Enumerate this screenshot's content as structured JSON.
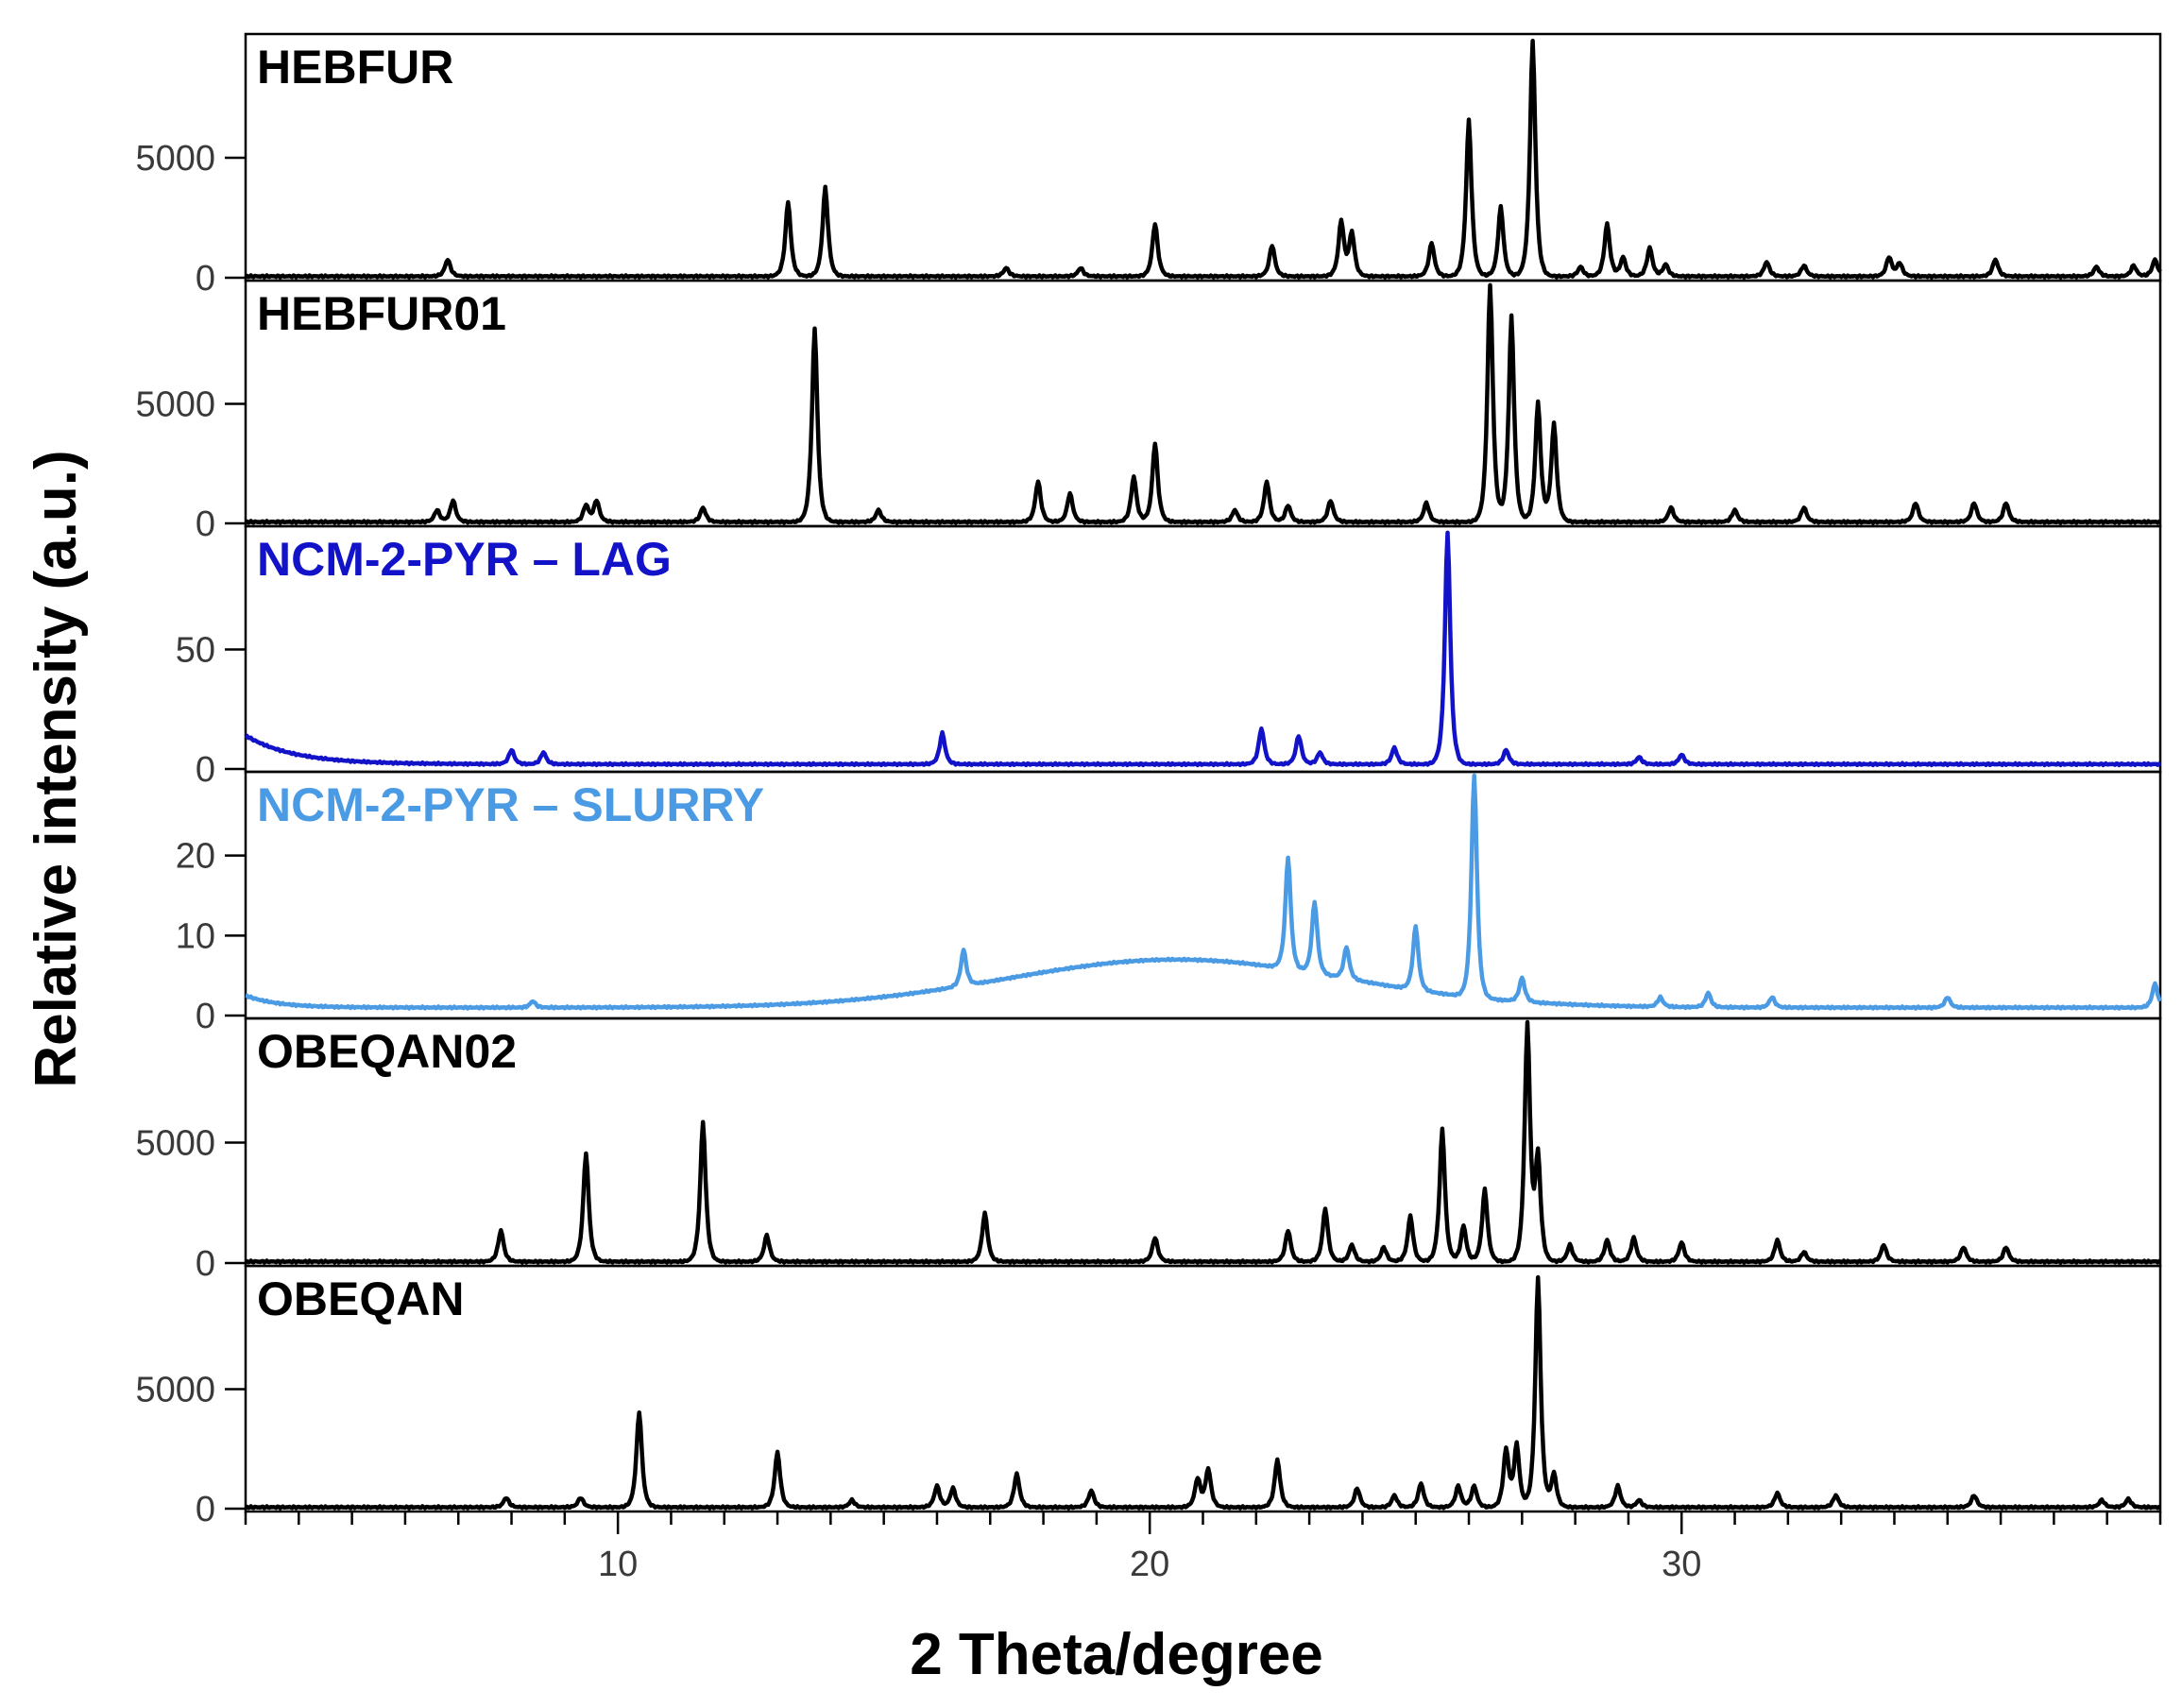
{
  "chart_data": {
    "type": "line",
    "xlabel": "2 Theta/degree",
    "ylabel": "Relative intensity (a.u.)",
    "xlim": [
      3,
      39
    ],
    "x_ticks": [
      10,
      20,
      30
    ],
    "x_minor_step": 1,
    "layout": "vertically stacked panels sharing the x axis",
    "series": [
      {
        "name": "HEBFUR",
        "color": "#000000",
        "ylim": [
          0,
          10000
        ],
        "y_ticks": [
          0,
          5000
        ],
        "baseline": 60,
        "peaks": [
          [
            6.8,
            700
          ],
          [
            13.2,
            3100
          ],
          [
            13.9,
            3700
          ],
          [
            17.3,
            350
          ],
          [
            18.7,
            350
          ],
          [
            20.1,
            2200
          ],
          [
            22.3,
            1300
          ],
          [
            23.6,
            2300
          ],
          [
            23.8,
            1800
          ],
          [
            25.3,
            1400
          ],
          [
            26.0,
            6500
          ],
          [
            26.6,
            2900
          ],
          [
            27.2,
            9800
          ],
          [
            28.1,
            400
          ],
          [
            28.6,
            2200
          ],
          [
            28.9,
            800
          ],
          [
            29.4,
            1200
          ],
          [
            29.7,
            500
          ],
          [
            31.6,
            600
          ],
          [
            32.3,
            450
          ],
          [
            33.9,
            800
          ],
          [
            34.1,
            550
          ],
          [
            35.9,
            700
          ],
          [
            37.8,
            400
          ],
          [
            38.5,
            450
          ],
          [
            38.9,
            700
          ]
        ]
      },
      {
        "name": "HEBFUR01",
        "color": "#000000",
        "ylim": [
          0,
          10000
        ],
        "y_ticks": [
          0,
          5000
        ],
        "baseline": 60,
        "peaks": [
          [
            6.6,
            500
          ],
          [
            6.9,
            900
          ],
          [
            9.4,
            700
          ],
          [
            9.6,
            900
          ],
          [
            11.6,
            600
          ],
          [
            13.7,
            8100
          ],
          [
            14.9,
            500
          ],
          [
            17.9,
            1700
          ],
          [
            18.5,
            1200
          ],
          [
            19.7,
            1900
          ],
          [
            20.1,
            3300
          ],
          [
            21.6,
            500
          ],
          [
            22.2,
            1700
          ],
          [
            22.6,
            700
          ],
          [
            23.4,
            900
          ],
          [
            25.2,
            800
          ],
          [
            26.4,
            9900
          ],
          [
            26.8,
            8600
          ],
          [
            27.3,
            5000
          ],
          [
            27.6,
            4100
          ],
          [
            29.8,
            600
          ],
          [
            31.0,
            500
          ],
          [
            32.3,
            600
          ],
          [
            34.4,
            800
          ],
          [
            35.5,
            800
          ],
          [
            36.1,
            800
          ]
        ]
      },
      {
        "name": "NCM-2-PYR – LAG",
        "color": "#1212c8",
        "ylim": [
          0,
          100
        ],
        "y_ticks": [
          0,
          50
        ],
        "baseline": 2,
        "low_angle_rise": {
          "start": 3,
          "height": 12,
          "decay": 0.9
        },
        "peaks": [
          [
            8.0,
            6
          ],
          [
            8.6,
            5
          ],
          [
            16.1,
            13
          ],
          [
            22.1,
            15
          ],
          [
            22.8,
            12
          ],
          [
            23.2,
            5
          ],
          [
            24.6,
            7
          ],
          [
            25.6,
            97
          ],
          [
            26.7,
            6
          ],
          [
            29.2,
            3
          ],
          [
            30.0,
            4
          ]
        ]
      },
      {
        "name": "NCM-2-PYR – SLURRY",
        "color": "#4a9be4",
        "ylim": [
          0,
          30
        ],
        "y_ticks": [
          0,
          10,
          20
        ],
        "baseline": 1,
        "low_angle_rise": {
          "start": 3,
          "height": 1.5,
          "decay": 0.6
        },
        "broad_hump": {
          "center": 20.5,
          "height": 6,
          "width": 4.5
        },
        "peaks": [
          [
            8.4,
            0.8
          ],
          [
            16.5,
            4.5
          ],
          [
            22.6,
            14
          ],
          [
            23.1,
            9
          ],
          [
            23.7,
            4
          ],
          [
            25.0,
            8
          ],
          [
            26.1,
            28
          ],
          [
            27.0,
            3
          ],
          [
            29.6,
            1.2
          ],
          [
            30.5,
            1.8
          ],
          [
            31.7,
            1.3
          ],
          [
            35.0,
            1.3
          ],
          [
            38.9,
            3
          ]
        ]
      },
      {
        "name": "OBEQAN02",
        "color": "#000000",
        "ylim": [
          0,
          10000
        ],
        "y_ticks": [
          0,
          5000
        ],
        "baseline": 60,
        "peaks": [
          [
            7.8,
            1300
          ],
          [
            9.4,
            4500
          ],
          [
            11.6,
            5800
          ],
          [
            12.8,
            1100
          ],
          [
            16.9,
            2000
          ],
          [
            20.1,
            1000
          ],
          [
            22.6,
            1300
          ],
          [
            23.3,
            2200
          ],
          [
            23.8,
            700
          ],
          [
            24.4,
            600
          ],
          [
            24.9,
            1900
          ],
          [
            25.5,
            5500
          ],
          [
            25.9,
            1500
          ],
          [
            26.3,
            3000
          ],
          [
            27.1,
            9800
          ],
          [
            27.3,
            4300
          ],
          [
            27.9,
            700
          ],
          [
            28.6,
            900
          ],
          [
            29.1,
            1000
          ],
          [
            30.0,
            800
          ],
          [
            31.8,
            900
          ],
          [
            32.3,
            400
          ],
          [
            33.8,
            700
          ],
          [
            35.3,
            600
          ],
          [
            36.1,
            600
          ]
        ]
      },
      {
        "name": "OBEQAN",
        "color": "#000000",
        "ylim": [
          0,
          10000
        ],
        "y_ticks": [
          0,
          5000
        ],
        "baseline": 60,
        "peaks": [
          [
            7.9,
            400
          ],
          [
            9.3,
            400
          ],
          [
            10.4,
            4000
          ],
          [
            13.0,
            2300
          ],
          [
            14.4,
            300
          ],
          [
            16.0,
            900
          ],
          [
            16.3,
            800
          ],
          [
            17.5,
            1400
          ],
          [
            18.9,
            700
          ],
          [
            20.9,
            1200
          ],
          [
            21.1,
            1600
          ],
          [
            22.4,
            2000
          ],
          [
            23.9,
            800
          ],
          [
            24.6,
            500
          ],
          [
            25.1,
            1000
          ],
          [
            25.8,
            900
          ],
          [
            26.1,
            900
          ],
          [
            26.7,
            2400
          ],
          [
            26.9,
            2600
          ],
          [
            27.3,
            9600
          ],
          [
            27.6,
            1400
          ],
          [
            28.8,
            900
          ],
          [
            29.2,
            300
          ],
          [
            31.8,
            600
          ],
          [
            32.9,
            500
          ],
          [
            35.5,
            500
          ],
          [
            37.9,
            300
          ],
          [
            38.4,
            350
          ]
        ]
      }
    ]
  }
}
